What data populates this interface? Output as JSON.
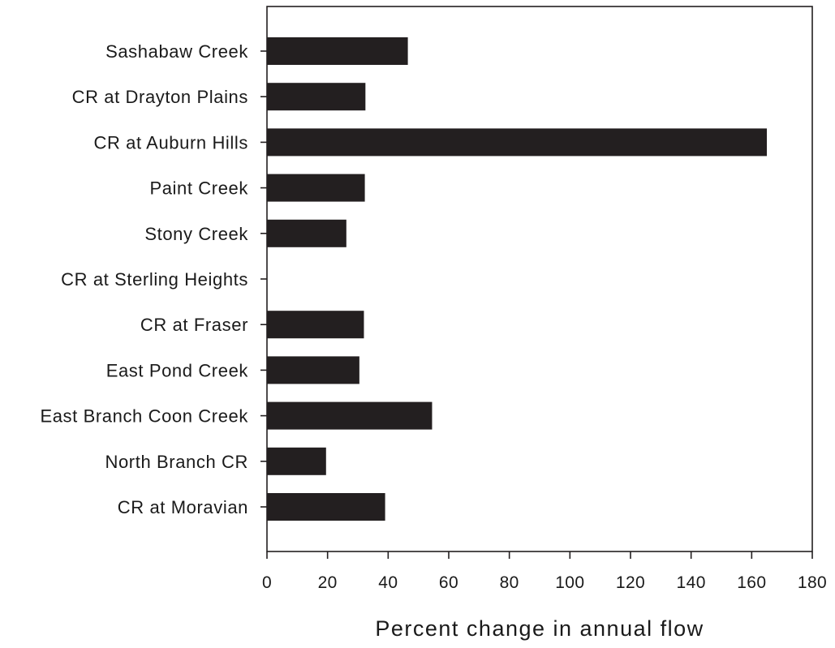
{
  "chart_data": {
    "type": "bar",
    "orientation": "horizontal",
    "title": "",
    "xlabel": "Percent change in annual flow",
    "ylabel": "",
    "categories": [
      "Sashabaw Creek",
      "CR at Drayton Plains",
      "CR at Auburn Hills",
      "Paint Creek",
      "Stony Creek",
      "CR at Sterling Heights",
      "CR at Fraser",
      "East Pond Creek",
      "East Branch Coon Creek",
      "North Branch CR",
      "CR at Moravian"
    ],
    "values": [
      46.5,
      32.5,
      165,
      32.3,
      26.2,
      0,
      32,
      30.5,
      54.5,
      19.5,
      39
    ],
    "xlim": [
      0,
      180
    ],
    "xticks": [
      0,
      20,
      40,
      60,
      80,
      100,
      120,
      140,
      160,
      180
    ],
    "grid": false,
    "legend": "none",
    "colors": {
      "bar": "#231f20",
      "axis": "#231f20",
      "text": "#1a1a1a",
      "background": "#ffffff"
    }
  }
}
